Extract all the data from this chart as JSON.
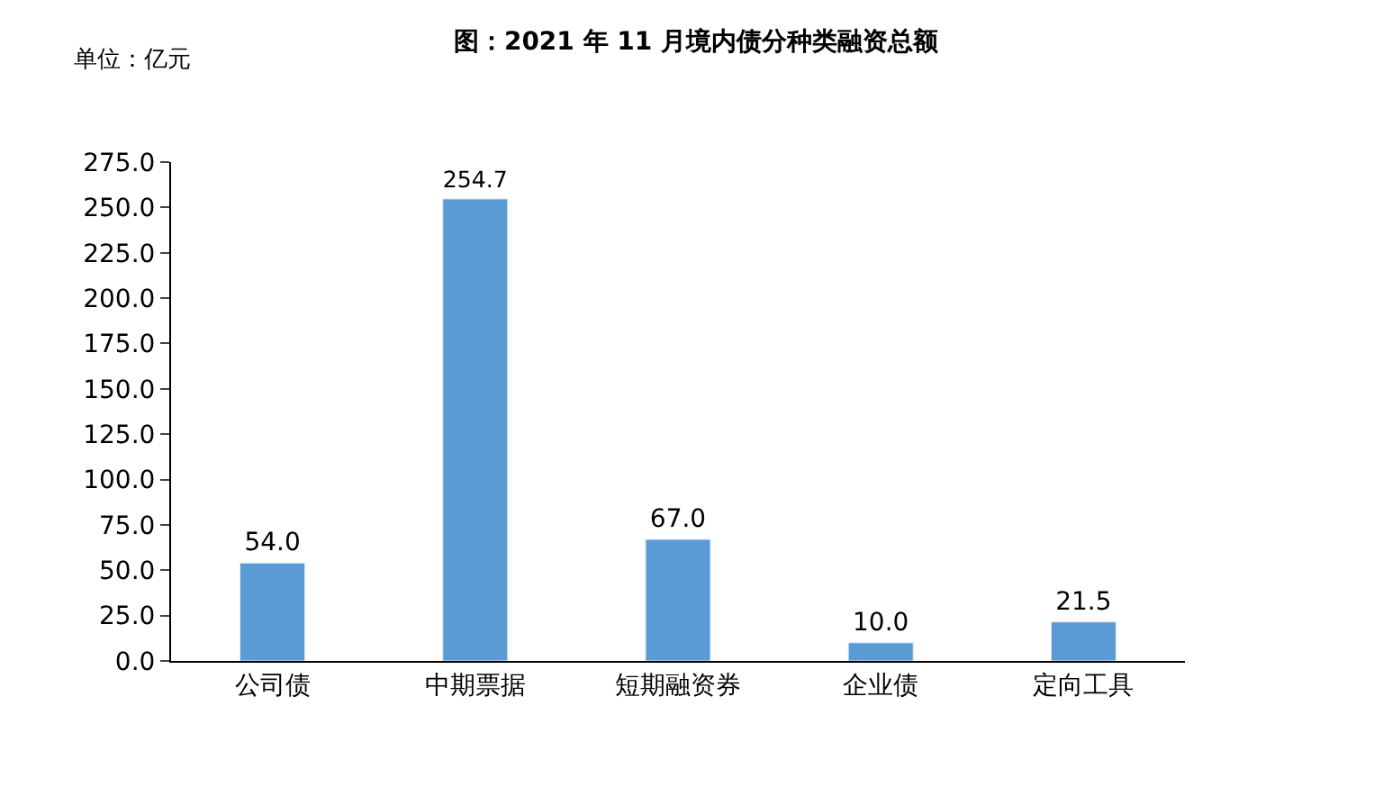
{
  "chart_data": {
    "type": "bar",
    "title": "图：2021 年 11 月境内债分种类融资总额",
    "ylabel": "单位：亿元",
    "categories": [
      "公司债",
      "中期票据",
      "短期融资券",
      "企业债",
      "定向工具"
    ],
    "values": [
      54.0,
      254.7,
      67.0,
      10.0,
      21.5
    ],
    "value_labels": [
      "54.0",
      "254.7",
      "67.0",
      "10.0",
      "21.5"
    ],
    "color": "#5b9bd5",
    "ylim": [
      0,
      275
    ],
    "yticks": [
      {
        "value": 0,
        "label": "0.0"
      },
      {
        "value": 25,
        "label": "25.0"
      },
      {
        "value": 50,
        "label": "50.0"
      },
      {
        "value": 75,
        "label": "75.0"
      },
      {
        "value": 100,
        "label": "100.0"
      },
      {
        "value": 125,
        "label": "125.0"
      },
      {
        "value": 150,
        "label": "150.0"
      },
      {
        "value": 175,
        "label": "175.0"
      },
      {
        "value": 200,
        "label": "200.0"
      },
      {
        "value": 225,
        "label": "225.0"
      },
      {
        "value": 250,
        "label": "250.0"
      },
      {
        "value": 275,
        "label": "275.0"
      }
    ]
  }
}
